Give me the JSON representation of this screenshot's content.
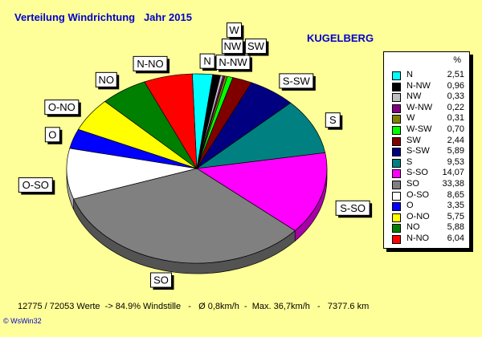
{
  "header": {
    "title": "Verteilung Windrichtung   Jahr 2015",
    "station": "KUGELBERG"
  },
  "legend": {
    "unit": "%"
  },
  "footer": {
    "stats": "12775 / 72053 Werte  -> 84.9% Windstille   -   Ø 0,8km/h  -  Max. 36,7km/h   -   7377.6 km"
  },
  "brand": "© WsWin32",
  "chart_data": {
    "type": "pie",
    "title": "Verteilung Windrichtung   Jahr 2015",
    "slices": [
      {
        "label": "N",
        "value_text": "2,51",
        "value": 2.51,
        "color": "#00ffff"
      },
      {
        "label": "N-NW",
        "value_text": "0,96",
        "value": 0.96,
        "color": "#000000"
      },
      {
        "label": "NW",
        "value_text": "0,33",
        "value": 0.33,
        "color": "#c0c0c0"
      },
      {
        "label": "W-NW",
        "value_text": "0,22",
        "value": 0.22,
        "color": "#800080"
      },
      {
        "label": "W",
        "value_text": "0,31",
        "value": 0.31,
        "color": "#808000"
      },
      {
        "label": "W-SW",
        "value_text": "0,70",
        "value": 0.7,
        "color": "#00ff00"
      },
      {
        "label": "SW",
        "value_text": "2,44",
        "value": 2.44,
        "color": "#800000"
      },
      {
        "label": "S-SW",
        "value_text": "5,89",
        "value": 5.89,
        "color": "#000080"
      },
      {
        "label": "S",
        "value_text": "9,53",
        "value": 9.53,
        "color": "#008080"
      },
      {
        "label": "S-SO",
        "value_text": "14,07",
        "value": 14.07,
        "color": "#ff00ff"
      },
      {
        "label": "SO",
        "value_text": "33,38",
        "value": 33.38,
        "color": "#808080"
      },
      {
        "label": "O-SO",
        "value_text": "8,65",
        "value": 8.65,
        "color": "#ffffff"
      },
      {
        "label": "O",
        "value_text": "3,35",
        "value": 3.35,
        "color": "#0000ff"
      },
      {
        "label": "O-NO",
        "value_text": "5,75",
        "value": 5.75,
        "color": "#ffff00"
      },
      {
        "label": "NO",
        "value_text": "5,88",
        "value": 5.88,
        "color": "#008000"
      },
      {
        "label": "N-NO",
        "value_text": "6,04",
        "value": 6.04,
        "color": "#ff0000"
      }
    ],
    "pie_labels": [
      "S-SW",
      "N-NW",
      "NW",
      "N",
      "SW",
      "W",
      "N-NO",
      "NO",
      "S",
      "O-NO",
      "O",
      "S-SO",
      "O-SO",
      "SO"
    ],
    "legend_position": "right"
  }
}
